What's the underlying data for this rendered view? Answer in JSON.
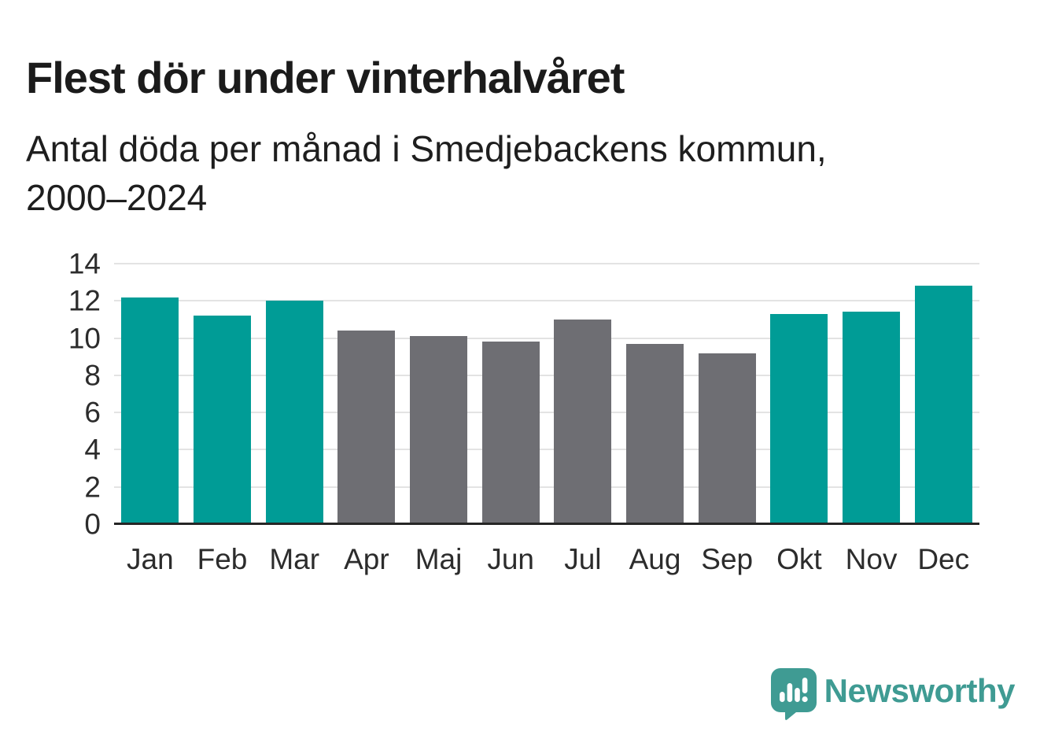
{
  "header": {
    "title": "Flest dör under vinterhalvåret",
    "subtitle_lines": [
      "Antal döda per månad i Smedjebackens kommun,",
      "2000–2024"
    ]
  },
  "chart_data": {
    "type": "bar",
    "title": "Flest dör under vinterhalvåret",
    "subtitle": "Antal döda per månad i Smedjebackens kommun, 2000–2024",
    "categories": [
      "Jan",
      "Feb",
      "Mar",
      "Apr",
      "Maj",
      "Jun",
      "Jul",
      "Aug",
      "Sep",
      "Okt",
      "Nov",
      "Dec"
    ],
    "values": [
      12.2,
      11.2,
      12.0,
      10.4,
      10.1,
      9.8,
      11.0,
      9.7,
      9.2,
      11.3,
      11.4,
      12.8
    ],
    "highlight": [
      true,
      true,
      true,
      false,
      false,
      false,
      false,
      false,
      false,
      true,
      true,
      true
    ],
    "colors": {
      "highlight_bar": "#009c96",
      "regular_bar": "#6e6e73",
      "gridline": "#e3e3e3",
      "axis_line": "#262626",
      "tick_text": "#2c2c2c"
    },
    "xlabel": "",
    "ylabel": "",
    "ylim": [
      0,
      14
    ],
    "yticks": [
      0,
      2,
      4,
      6,
      8,
      10,
      12,
      14
    ],
    "grid": "horizontal",
    "legend": "none"
  },
  "footer": {
    "brand": "Newsworthy",
    "brand_color": "#3f9b93"
  }
}
